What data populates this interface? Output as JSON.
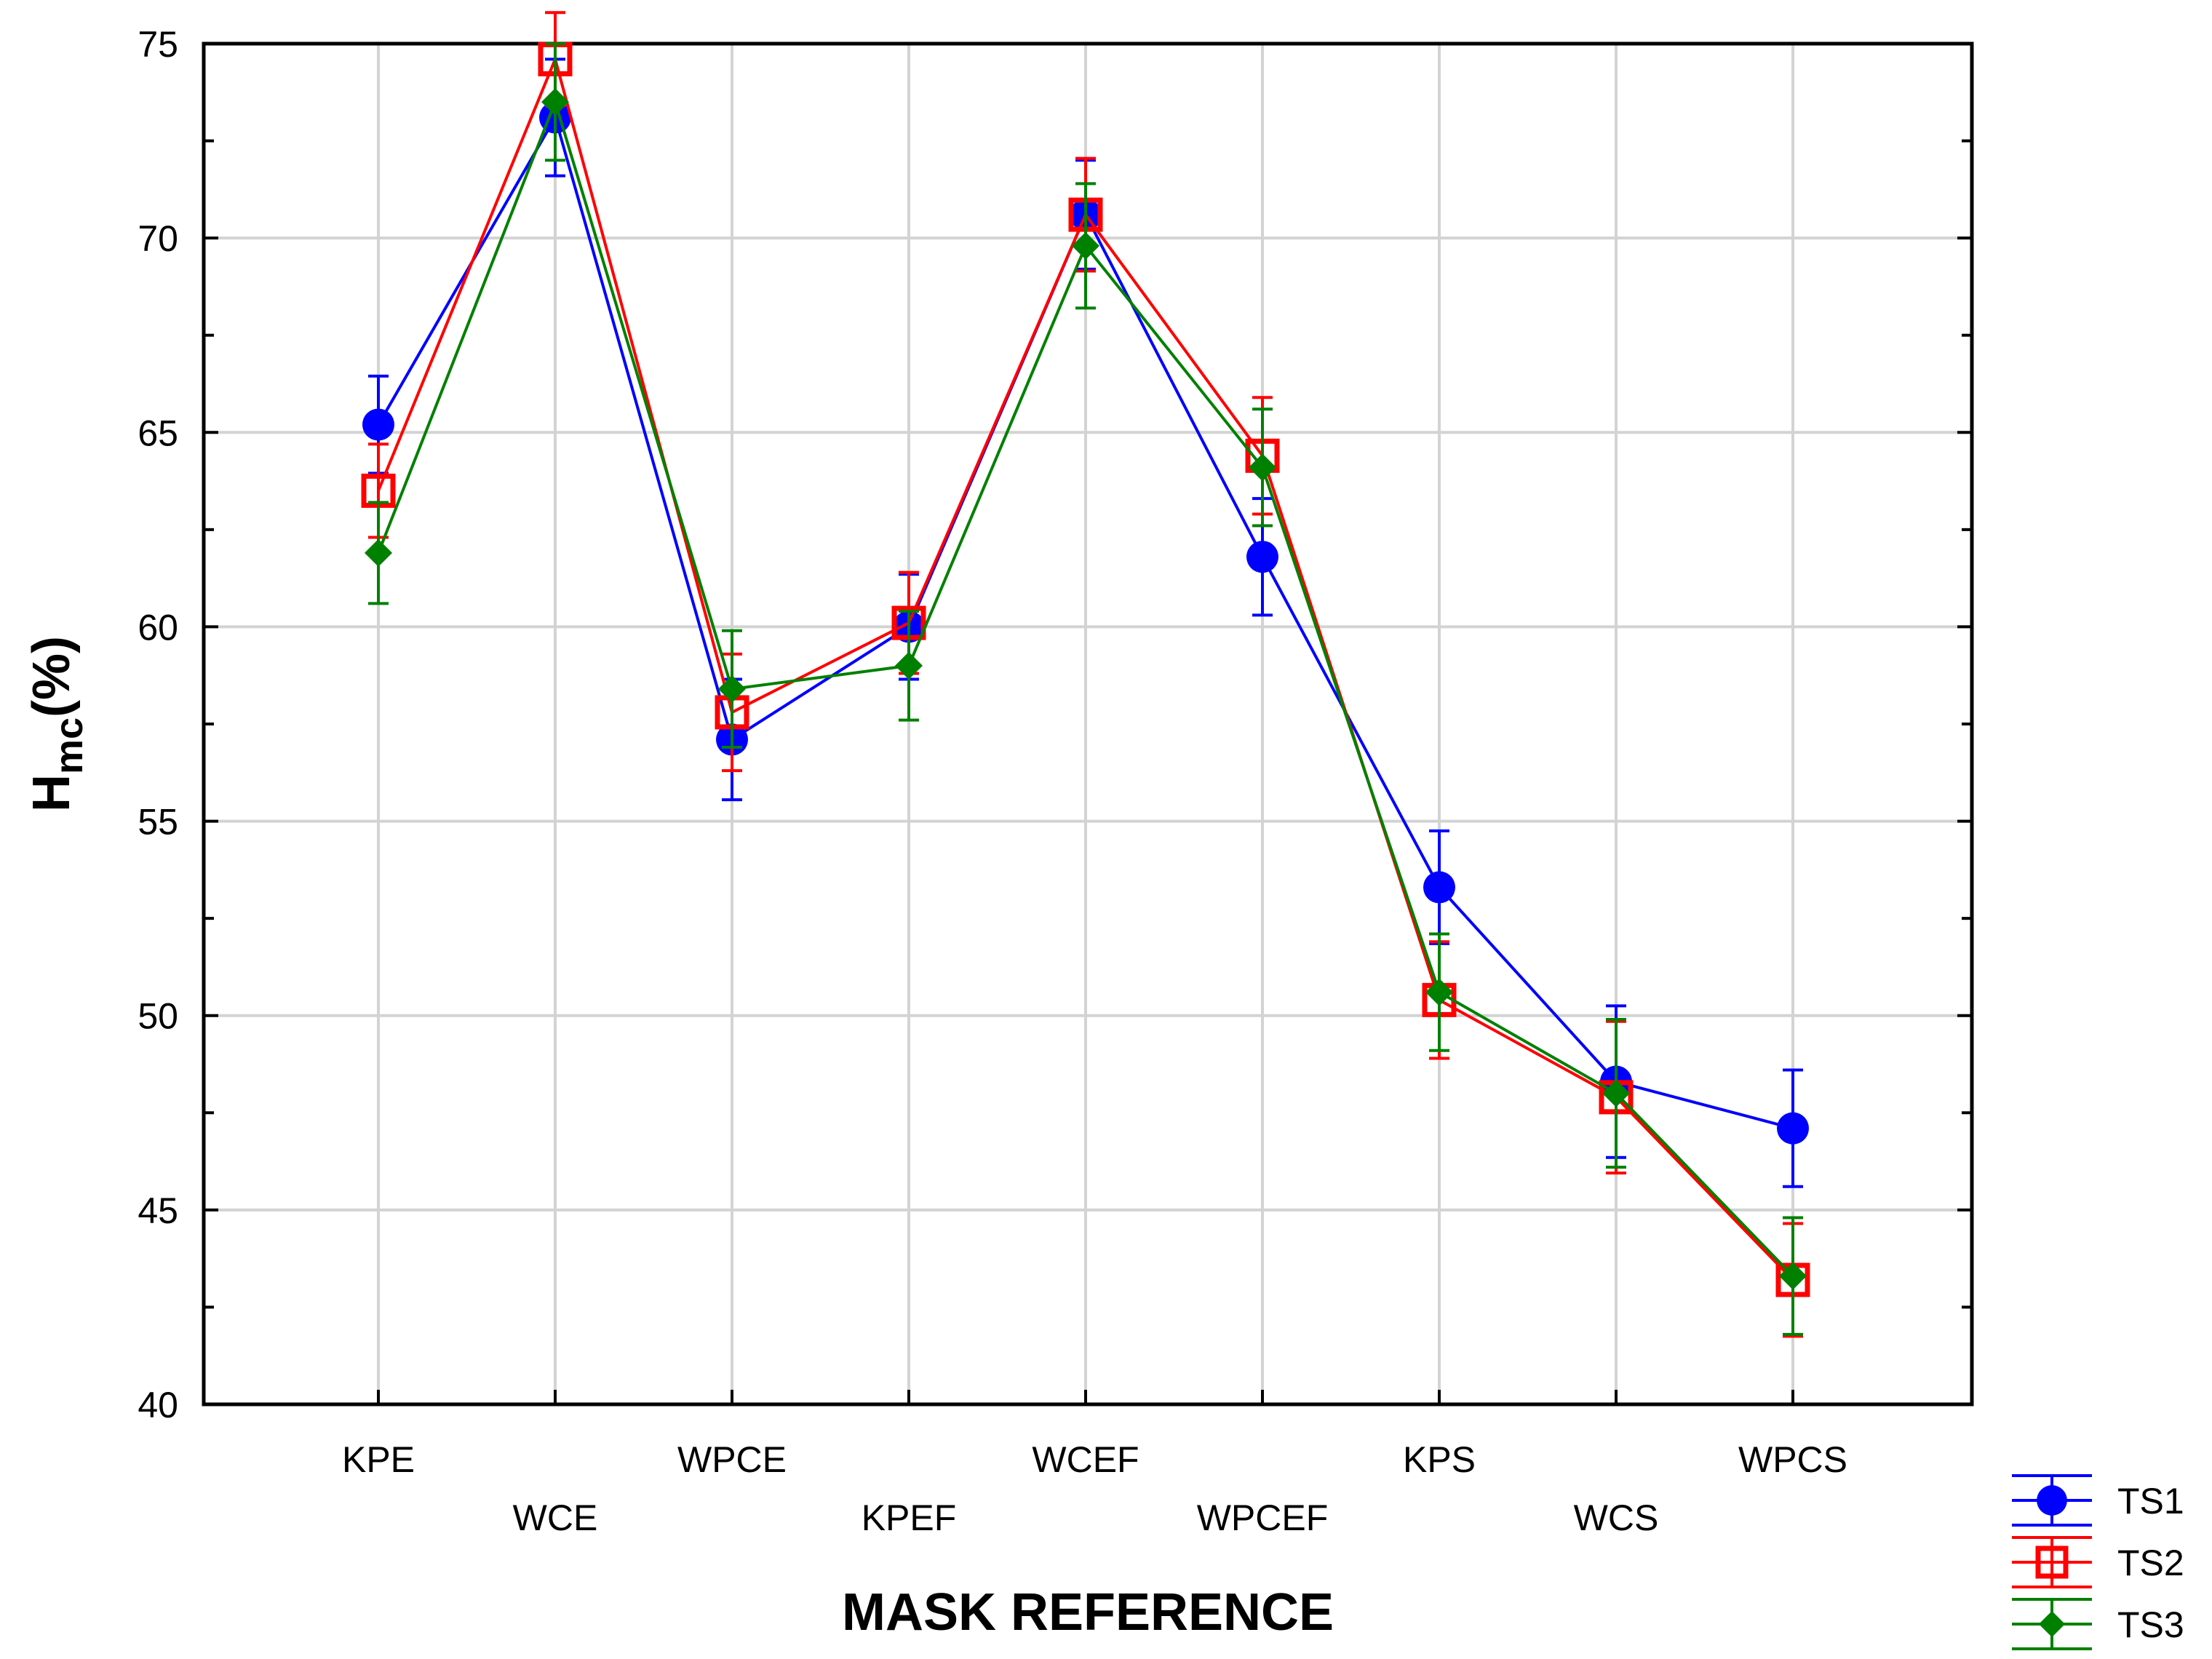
{
  "chart_data": {
    "type": "line",
    "title": "",
    "xlabel": "MASK REFERENCE",
    "ylabel": {
      "main": "H",
      "sub": "mc",
      "suffix": "(%)"
    },
    "ylim": [
      40,
      75
    ],
    "yticks": [
      40,
      45,
      50,
      55,
      60,
      65,
      70,
      75
    ],
    "ytick_labels": [
      "40",
      "45",
      "50",
      "55",
      "60",
      "65",
      "70",
      "75"
    ],
    "categories": [
      "KPE",
      "WCE",
      "WPCE",
      "KPEF",
      "WCEF",
      "WPCEF",
      "KPS",
      "WCS",
      "WPCS"
    ],
    "grid": true,
    "legend_position": "bottom-right-outside",
    "series": [
      {
        "name": "TS1",
        "color": "#0000ff",
        "marker": "circle",
        "values": [
          65.2,
          73.1,
          57.1,
          60.0,
          70.6,
          61.8,
          53.3,
          48.3,
          47.1
        ],
        "errors": [
          1.25,
          1.5,
          1.55,
          1.35,
          1.4,
          1.5,
          1.45,
          1.95,
          1.5
        ]
      },
      {
        "name": "TS2",
        "color": "#ff0000",
        "marker": "square",
        "values": [
          63.5,
          74.6,
          57.8,
          60.1,
          70.6,
          64.4,
          50.4,
          47.9,
          43.2
        ],
        "errors": [
          1.2,
          1.2,
          1.5,
          1.3,
          1.45,
          1.5,
          1.5,
          1.95,
          1.45
        ]
      },
      {
        "name": "TS3",
        "color": "#008000",
        "marker": "diamond",
        "values": [
          61.9,
          73.5,
          58.4,
          59.0,
          69.8,
          64.1,
          50.6,
          48.0,
          43.3
        ],
        "errors": [
          1.3,
          1.5,
          1.5,
          1.4,
          1.6,
          1.5,
          1.5,
          1.9,
          1.5
        ]
      }
    ]
  }
}
